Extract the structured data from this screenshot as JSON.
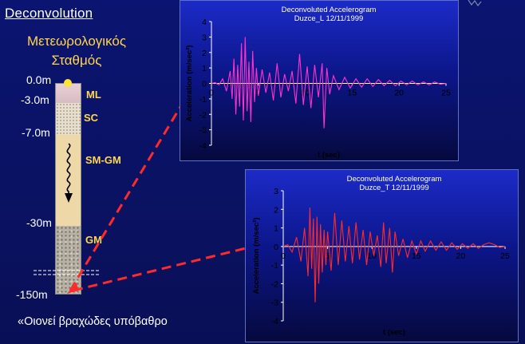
{
  "slide": {
    "title": "Deconvolution",
    "station_line1": "Μετεωρολογικός",
    "station_line2": "Σταθμός",
    "bedrock_note": "«Οιονεί βραχώδες υπόβαθρο"
  },
  "depths": {
    "d0": "0.0m",
    "d3": "-3.0m",
    "d7": "-7.0m",
    "d30": "-30m",
    "d150": "-150m"
  },
  "layers": {
    "ml": "ML",
    "sc": "SC",
    "smgm": "SM-GM",
    "gm": "GM"
  },
  "colors": {
    "background": "#0b1470",
    "trace_L": "#ff33cc",
    "trace_T": "#ff2a2a",
    "arrow": "#ff2a2a",
    "label_yellow": "#ffd84d"
  },
  "chart_data": [
    {
      "type": "line",
      "title": "Deconvoluted Accelerogram",
      "subtitle": "Duzce_L 12/11/1999",
      "xlabel": "t (sec)",
      "ylabel": "Acceleration (m/sec²)",
      "xlim": [
        0,
        25
      ],
      "ylim": [
        -4,
        4
      ],
      "x_ticks": [
        "0",
        "5",
        "10",
        "15",
        "20",
        "25"
      ],
      "y_ticks": [
        "4",
        "3",
        "2",
        "1",
        "0",
        "-1",
        "-2",
        "-3",
        "-4"
      ],
      "series": [
        {
          "color": "#ff33cc",
          "points": [
            [
              0,
              0
            ],
            [
              0.4,
              0.05
            ],
            [
              0.8,
              -0.1
            ],
            [
              1.2,
              0.3
            ],
            [
              1.6,
              -0.5
            ],
            [
              2.0,
              0.8
            ],
            [
              2.2,
              -1.0
            ],
            [
              2.4,
              1.6
            ],
            [
              2.6,
              -2.0
            ],
            [
              2.8,
              1.2
            ],
            [
              3.0,
              -1.5
            ],
            [
              3.2,
              2.6
            ],
            [
              3.4,
              -2.4
            ],
            [
              3.6,
              3.0
            ],
            [
              3.8,
              -1.8
            ],
            [
              4.0,
              1.4
            ],
            [
              4.2,
              -2.5
            ],
            [
              4.4,
              2.1
            ],
            [
              4.6,
              -1.2
            ],
            [
              4.8,
              1.0
            ],
            [
              5.0,
              -0.8
            ],
            [
              5.4,
              0.9
            ],
            [
              5.8,
              -0.6
            ],
            [
              6.2,
              0.7
            ],
            [
              6.6,
              -1.1
            ],
            [
              7.0,
              1.3
            ],
            [
              7.4,
              -0.9
            ],
            [
              7.8,
              0.6
            ],
            [
              8.2,
              -0.5
            ],
            [
              8.6,
              0.8
            ],
            [
              9.0,
              -1.3
            ],
            [
              9.4,
              1.9
            ],
            [
              9.8,
              -1.4
            ],
            [
              10.2,
              1.1
            ],
            [
              10.6,
              -1.6
            ],
            [
              11.0,
              1.2
            ],
            [
              11.4,
              -0.9
            ],
            [
              11.8,
              1.3
            ],
            [
              12.0,
              -2.9
            ],
            [
              12.3,
              1.0
            ],
            [
              12.6,
              -0.7
            ],
            [
              13.0,
              0.5
            ],
            [
              13.6,
              -0.4
            ],
            [
              14.2,
              0.4
            ],
            [
              14.8,
              -0.3
            ],
            [
              15.4,
              0.3
            ],
            [
              16.0,
              -0.25
            ],
            [
              16.6,
              0.3
            ],
            [
              17.2,
              -0.2
            ],
            [
              17.8,
              0.25
            ],
            [
              18.4,
              -0.15
            ],
            [
              19.0,
              0.2
            ],
            [
              19.6,
              -0.15
            ],
            [
              20.2,
              0.15
            ],
            [
              20.8,
              -0.1
            ],
            [
              21.4,
              0.15
            ],
            [
              22.0,
              -0.1
            ],
            [
              22.6,
              0.1
            ],
            [
              23.2,
              -0.1
            ],
            [
              23.8,
              0.1
            ],
            [
              24.4,
              -0.05
            ],
            [
              25,
              0
            ]
          ]
        }
      ]
    },
    {
      "type": "line",
      "title": "Deconvoluted Accelerogram",
      "subtitle": "Duzce_T 12/11/1999",
      "xlabel": "t (sec)",
      "ylabel": "Acceleration (m/sec²)",
      "xlim": [
        0,
        25
      ],
      "ylim": [
        -4,
        3
      ],
      "x_ticks": [
        "0",
        "5",
        "10",
        "15",
        "20",
        "25"
      ],
      "y_ticks": [
        "3",
        "2",
        "1",
        "0",
        "-1",
        "-2",
        "-3",
        "-4"
      ],
      "series": [
        {
          "color": "#ff2a2a",
          "points": [
            [
              0,
              0
            ],
            [
              0.5,
              0.1
            ],
            [
              1.0,
              -0.3
            ],
            [
              1.5,
              0.5
            ],
            [
              2.0,
              -0.8
            ],
            [
              2.4,
              1.0
            ],
            [
              2.8,
              -1.6
            ],
            [
              3.0,
              2.1
            ],
            [
              3.2,
              -1.2
            ],
            [
              3.4,
              1.5
            ],
            [
              3.6,
              -3.0
            ],
            [
              3.8,
              1.6
            ],
            [
              4.0,
              -2.0
            ],
            [
              4.2,
              1.2
            ],
            [
              4.4,
              -1.4
            ],
            [
              4.6,
              0.9
            ],
            [
              4.8,
              -1.0
            ],
            [
              5.0,
              0.8
            ],
            [
              5.4,
              -1.3
            ],
            [
              5.8,
              1.8
            ],
            [
              6.2,
              -1.0
            ],
            [
              6.6,
              1.4
            ],
            [
              7.0,
              -0.8
            ],
            [
              7.4,
              1.1
            ],
            [
              7.8,
              -0.9
            ],
            [
              8.2,
              1.3
            ],
            [
              8.6,
              -0.7
            ],
            [
              9.0,
              0.9
            ],
            [
              9.4,
              -1.0
            ],
            [
              9.8,
              0.8
            ],
            [
              10.2,
              -0.5
            ],
            [
              10.6,
              0.6
            ],
            [
              11.0,
              -1.1
            ],
            [
              11.3,
              1.3
            ],
            [
              11.6,
              -0.9
            ],
            [
              12.0,
              1.0
            ],
            [
              12.3,
              -1.4
            ],
            [
              12.6,
              0.8
            ],
            [
              13.0,
              -0.5
            ],
            [
              13.5,
              0.4
            ],
            [
              14.0,
              -0.6
            ],
            [
              14.5,
              0.3
            ],
            [
              15.0,
              -0.4
            ],
            [
              15.5,
              0.3
            ],
            [
              16.0,
              -0.25
            ],
            [
              16.6,
              0.3
            ],
            [
              17.2,
              -0.2
            ],
            [
              17.8,
              0.25
            ],
            [
              18.4,
              -0.2
            ],
            [
              19.0,
              0.2
            ],
            [
              19.6,
              -0.15
            ],
            [
              20.2,
              0.15
            ],
            [
              20.8,
              -0.1
            ],
            [
              21.4,
              0.15
            ],
            [
              22.0,
              -0.1
            ],
            [
              22.6,
              0.1
            ],
            [
              23.2,
              0.2
            ],
            [
              23.8,
              0.1
            ],
            [
              24.4,
              -0.05
            ],
            [
              25,
              0
            ]
          ]
        }
      ]
    }
  ]
}
